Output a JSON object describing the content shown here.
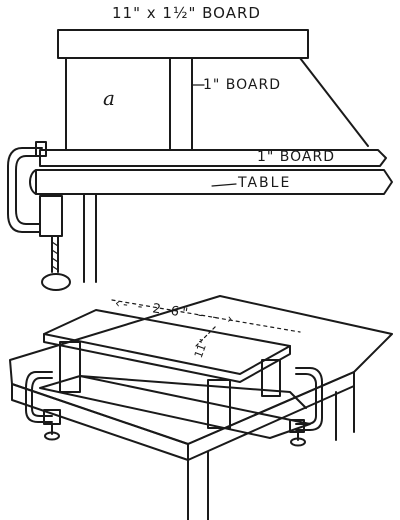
{
  "labels": {
    "top_board": "11\" x 1½\" BOARD",
    "part_a": "a",
    "one_inch_board_a": "1\" BOARD",
    "one_inch_board_b": "1\" BOARD",
    "table": "TABLE",
    "dim_26": "‹- - 2 6\" - - ›",
    "dim_11": "11\""
  }
}
